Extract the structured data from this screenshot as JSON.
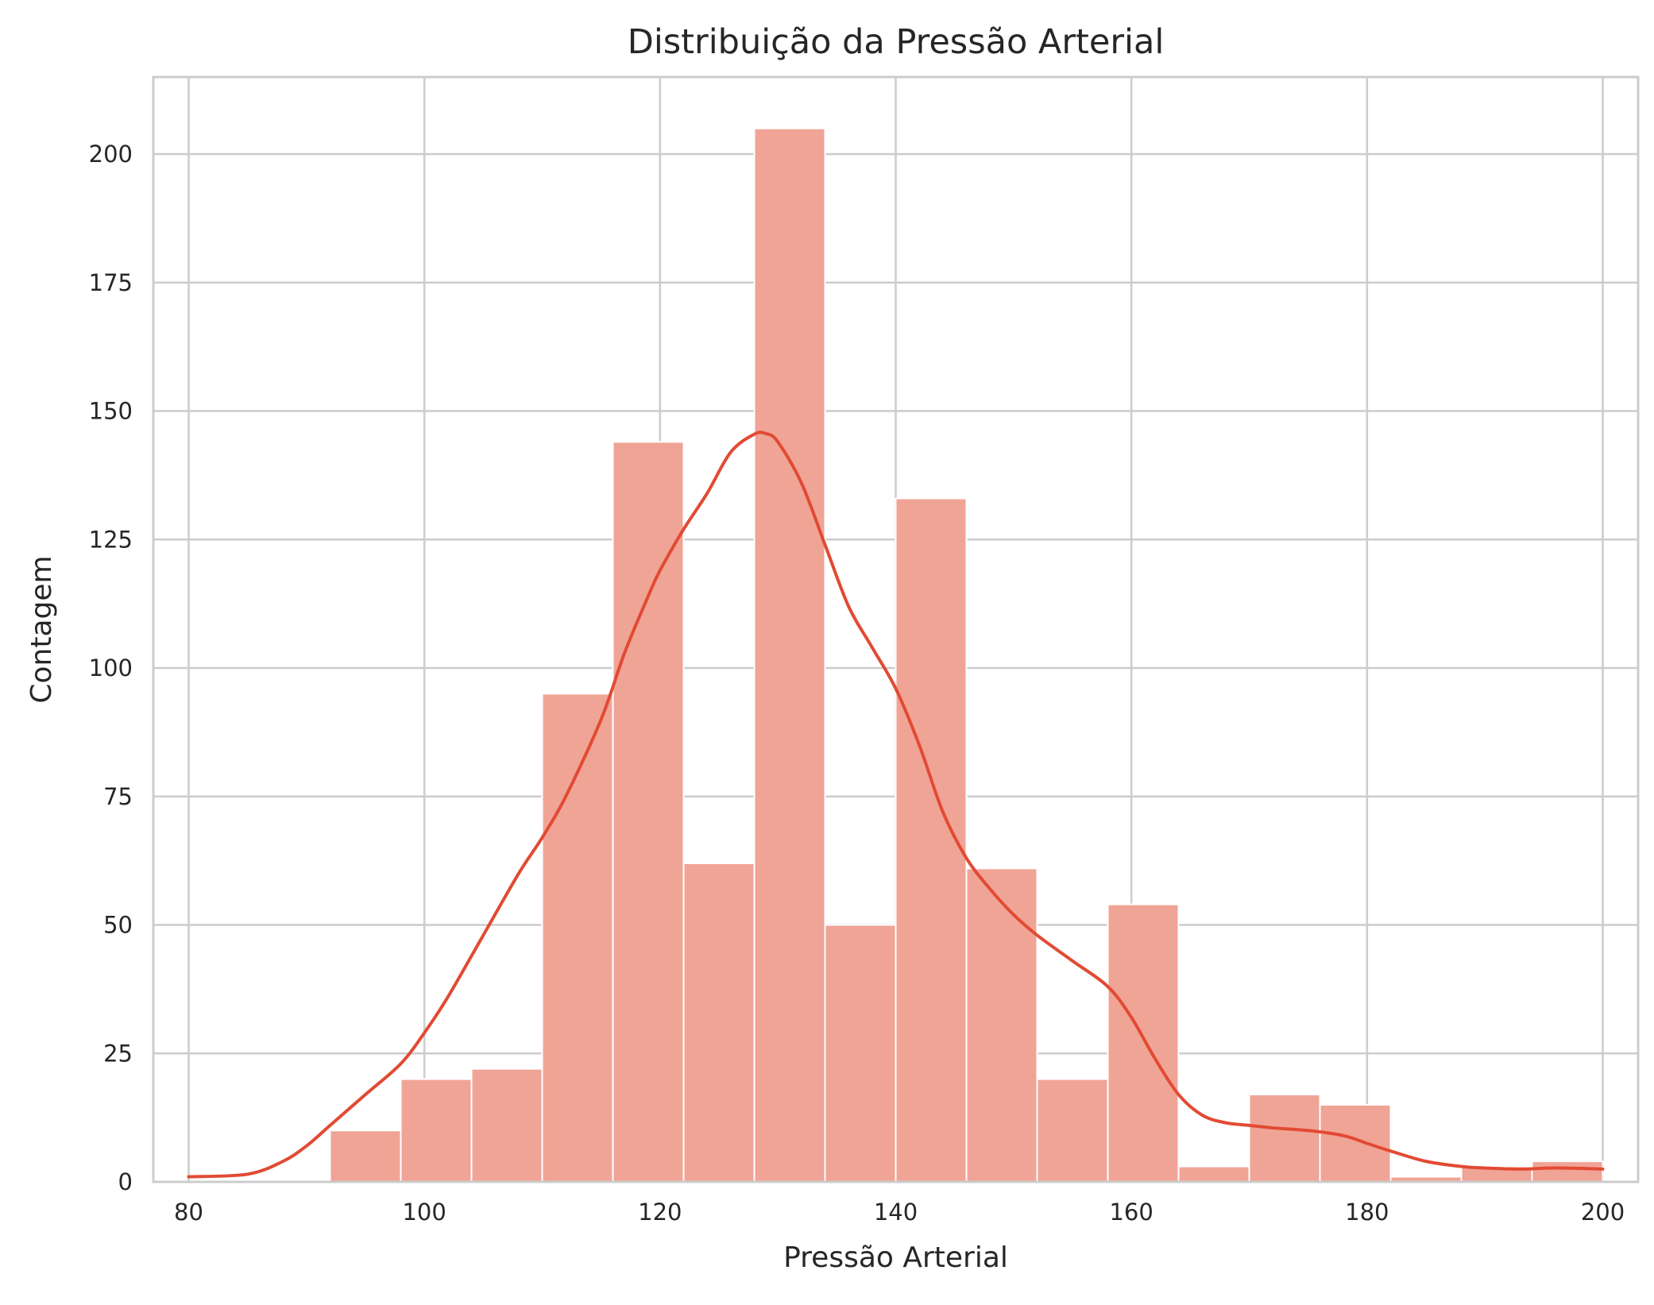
{
  "chart_data": {
    "type": "bar",
    "title": "Distribuição da Pressão Arterial",
    "xlabel": "Pressão Arterial",
    "ylabel": "Contagem",
    "xlim": [
      77,
      203
    ],
    "ylim": [
      0,
      215
    ],
    "xticks": [
      80,
      100,
      120,
      140,
      160,
      180,
      200
    ],
    "yticks": [
      0,
      25,
      50,
      75,
      100,
      125,
      150,
      175,
      200
    ],
    "grid": true,
    "legend": "none",
    "bins": [
      {
        "x0": 92,
        "x1": 98,
        "count": 10
      },
      {
        "x0": 98,
        "x1": 104,
        "count": 20
      },
      {
        "x0": 104,
        "x1": 110,
        "count": 22
      },
      {
        "x0": 110,
        "x1": 116,
        "count": 95
      },
      {
        "x0": 116,
        "x1": 122,
        "count": 144
      },
      {
        "x0": 122,
        "x1": 128,
        "count": 62
      },
      {
        "x0": 128,
        "x1": 134,
        "count": 205
      },
      {
        "x0": 134,
        "x1": 140,
        "count": 50
      },
      {
        "x0": 140,
        "x1": 146,
        "count": 133
      },
      {
        "x0": 146,
        "x1": 152,
        "count": 61
      },
      {
        "x0": 152,
        "x1": 158,
        "count": 20
      },
      {
        "x0": 158,
        "x1": 164,
        "count": 54
      },
      {
        "x0": 164,
        "x1": 170,
        "count": 3
      },
      {
        "x0": 170,
        "x1": 176,
        "count": 17
      },
      {
        "x0": 176,
        "x1": 182,
        "count": 15
      },
      {
        "x0": 182,
        "x1": 188,
        "count": 1
      },
      {
        "x0": 188,
        "x1": 194,
        "count": 3
      },
      {
        "x0": 194,
        "x1": 200,
        "count": 4
      }
    ],
    "kde": {
      "x": [
        80,
        85,
        88,
        90,
        92,
        95,
        98,
        100,
        102,
        105,
        108,
        110,
        112,
        115,
        117,
        119,
        120,
        122,
        124,
        126,
        128,
        129,
        130,
        132,
        134,
        136,
        138,
        140,
        142,
        144,
        146,
        148,
        150,
        152,
        155,
        158,
        160,
        162,
        164,
        166,
        168,
        170,
        172,
        175,
        178,
        180,
        182,
        185,
        188,
        190,
        193,
        196,
        200
      ],
      "y": [
        1,
        1.5,
        4,
        7,
        11,
        17,
        23,
        29,
        36,
        48,
        60,
        67,
        75,
        90,
        103,
        114,
        119,
        127,
        134,
        142,
        145.5,
        145.6,
        144,
        136,
        124,
        112,
        104,
        96,
        85,
        72,
        63,
        57,
        52,
        48,
        43,
        38,
        32,
        24,
        17,
        13,
        11.5,
        11,
        10.5,
        10,
        9,
        7.5,
        6,
        4,
        3,
        2.7,
        2.5,
        2.7,
        2.5
      ]
    },
    "colors": {
      "bar_fill": "#f0a496",
      "bar_edge": "#ffffff",
      "kde_line": "#e24a33",
      "grid": "#cccccc",
      "spine": "#cccccc"
    }
  }
}
